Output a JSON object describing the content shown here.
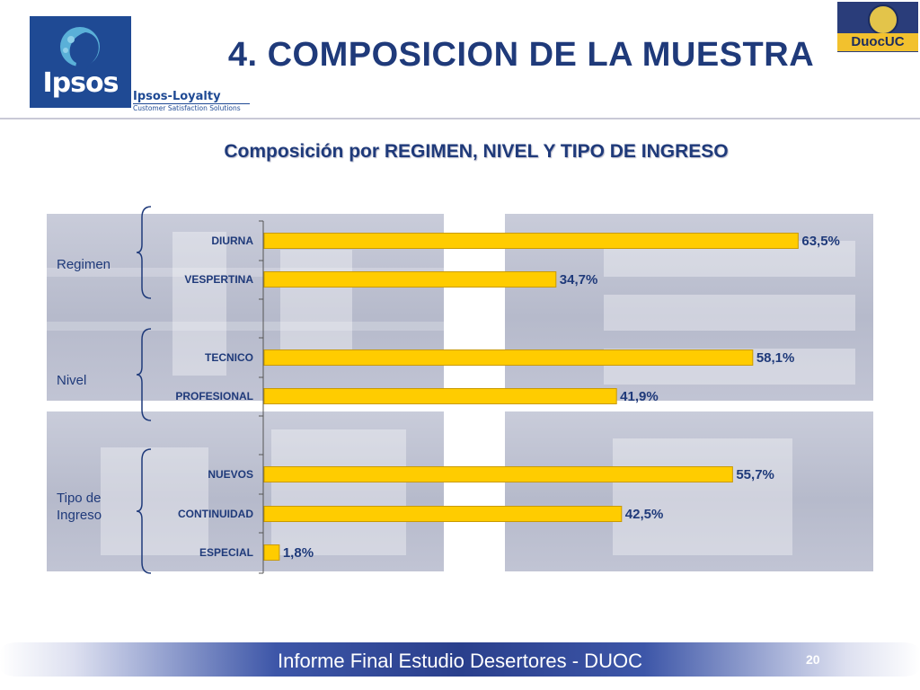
{
  "header": {
    "title": "4. COMPOSICION DE LA MUESTRA",
    "ipsos_logo_text": "Ipsos",
    "loyalty_name": "Ipsos-Loyalty",
    "loyalty_tagline": "Customer Satisfaction Solutions",
    "duoc_logo_text": "DuocUC"
  },
  "subtitle": "Composición por REGIMEN, NIVEL Y TIPO DE INGRESO",
  "groups": [
    "Regimen",
    "Nivel",
    "Tipo de Ingreso"
  ],
  "chart_data": {
    "type": "bar",
    "orientation": "horizontal",
    "categories": [
      "DIURNA",
      "VESPERTINA",
      "TECNICO",
      "PROFESIONAL",
      "NUEVOS",
      "CONTINUIDAD",
      "ESPECIAL"
    ],
    "values": [
      63.5,
      34.7,
      58.1,
      41.9,
      55.7,
      42.5,
      1.8
    ],
    "value_labels": [
      "63,5%",
      "34,7%",
      "58,1%",
      "41,9%",
      "55,7%",
      "42,5%",
      "1,8%"
    ],
    "xlim": [
      0,
      100
    ],
    "bar_color": "#ffcc00",
    "bar_edge_color": "#c99a00",
    "grid": false,
    "legend": "none"
  },
  "footer": {
    "text": "Informe Final Estudio Desertores - DUOC",
    "page_number": "20"
  },
  "colors": {
    "title": "#1f3a7a",
    "brand_ipsos": "#1f4a94",
    "footer_band": "#2a3f8c"
  }
}
